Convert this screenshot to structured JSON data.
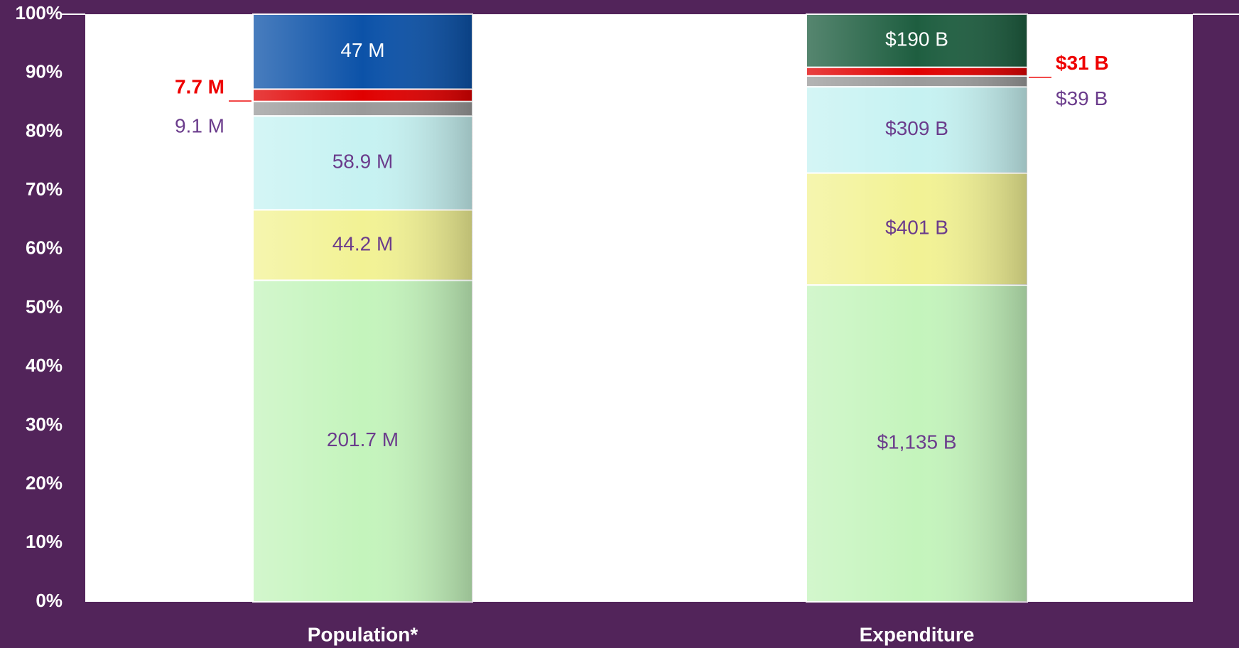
{
  "chart_data": {
    "type": "percent_stacked_bar",
    "categories": [
      "Population*",
      "Expenditure"
    ],
    "series": [
      {
        "colors": [
          "#c4f4bc",
          "#c4f4bc"
        ],
        "values": [
          201.7,
          1135
        ],
        "value_labels": [
          "201.7 M",
          "$1,135 B"
        ],
        "label_color": "#6b3c8c"
      },
      {
        "colors": [
          "#f2f294",
          "#f2f294"
        ],
        "values": [
          44.2,
          401
        ],
        "value_labels": [
          "44.2 M",
          "$401 B"
        ],
        "label_color": "#6b3c8c"
      },
      {
        "colors": [
          "#c6f2f2",
          "#c6f2f2"
        ],
        "values": [
          58.9,
          309
        ],
        "value_labels": [
          "58.9 M",
          "$309 B"
        ],
        "label_color": "#6b3c8c"
      },
      {
        "colors": [
          "#9a9a9a",
          "#9a9a9a"
        ],
        "values": [
          9.1,
          39
        ],
        "value_labels": [
          "9.1 M",
          "$39 B"
        ],
        "label_color": "#6b3c8c"
      },
      {
        "colors": [
          "#e00000",
          "#e00000"
        ],
        "values": [
          7.7,
          31
        ],
        "value_labels": [
          "7.7 M",
          "$31 B"
        ],
        "label_color": "#ee0000"
      },
      {
        "colors": [
          "#0c52a8",
          "#1e5e40"
        ],
        "values": [
          47,
          190
        ],
        "value_labels": [
          "47 M",
          "$190 B"
        ],
        "label_color": "#ffffff"
      }
    ],
    "ylim": [
      0,
      100
    ],
    "yticks": [
      {
        "value": 0,
        "label": "0%"
      },
      {
        "value": 10,
        "label": "10%"
      },
      {
        "value": 20,
        "label": "20%"
      },
      {
        "value": 30,
        "label": "30%"
      },
      {
        "value": 40,
        "label": "40%"
      },
      {
        "value": 50,
        "label": "50%"
      },
      {
        "value": 60,
        "label": "60%"
      },
      {
        "value": 70,
        "label": "70%"
      },
      {
        "value": 80,
        "label": "80%"
      },
      {
        "value": 90,
        "label": "90%"
      },
      {
        "value": {
          "value": 100
        },
        "label": "100%"
      }
    ]
  }
}
